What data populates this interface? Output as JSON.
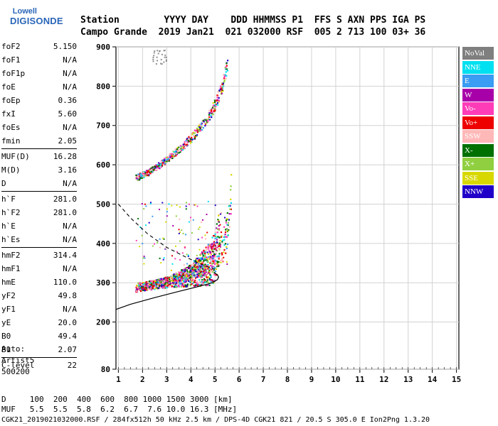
{
  "logo": {
    "line1": "Lowell",
    "line2": "DIGISONDE"
  },
  "header": {
    "labels": "Station        YYYY DAY    DDD HHMMSS P1  FFS S AXN PPS IGA PS",
    "values": "Campo Grande  2019 Jan21  021 032000 RSF  005 2 713 100 03+ 36"
  },
  "params": [
    {
      "key": "foF2",
      "value": "5.150"
    },
    {
      "key": "foF1",
      "value": "N/A"
    },
    {
      "key": "foF1p",
      "value": "N/A"
    },
    {
      "key": "foE",
      "value": "N/A"
    },
    {
      "key": "foEp",
      "value": "0.36"
    },
    {
      "key": "fxI",
      "value": "5.60"
    },
    {
      "key": "foEs",
      "value": "N/A"
    },
    {
      "key": "fmin",
      "value": "2.05"
    },
    {
      "key": "MUF(D)",
      "value": "16.28"
    },
    {
      "key": "M(D)",
      "value": "3.16"
    },
    {
      "key": "D",
      "value": "N/A"
    },
    {
      "key": "h`F",
      "value": "281.0"
    },
    {
      "key": "h`F2",
      "value": "281.0"
    },
    {
      "key": "h`E",
      "value": "N/A"
    },
    {
      "key": "h`Es",
      "value": "N/A"
    },
    {
      "key": "hmF2",
      "value": "314.4"
    },
    {
      "key": "hmF1",
      "value": "N/A"
    },
    {
      "key": "hmE",
      "value": "110.0"
    },
    {
      "key": "yF2",
      "value": "49.8"
    },
    {
      "key": "yF1",
      "value": "N/A"
    },
    {
      "key": "yE",
      "value": "20.0"
    },
    {
      "key": "B0",
      "value": "49.4"
    },
    {
      "key": "B1",
      "value": "2.07"
    },
    {
      "key": "C-level",
      "value": "22"
    }
  ],
  "auto": {
    "line1": "Auto:",
    "line2": "Artist5",
    "line3": "500200"
  },
  "bottom": {
    "d_line": "D     100  200  400  600  800 1000 1500 3000 [km]",
    "muf_line": "MUF   5.5  5.5  5.8  6.2  6.7  7.6 10.0 16.3 [MHz]"
  },
  "footer": "CGK21_2019021032000.RSF / 284fx512h 50 kHz 2.5 km / DPS-4D CGK21 821 / 20.5 S 305.0 E Ion2Png 1.3.20",
  "legend": [
    {
      "label": "NoVal",
      "color": "#7f7f7f"
    },
    {
      "label": "NNE",
      "color": "#00e0f0"
    },
    {
      "label": "E",
      "color": "#3a9cf2"
    },
    {
      "label": "W",
      "color": "#a800a8"
    },
    {
      "label": "Vo-",
      "color": "#ff3cb8"
    },
    {
      "label": "Vo+",
      "color": "#ee0000"
    },
    {
      "label": "SSW",
      "color": "#ffb8b8"
    },
    {
      "label": "X-",
      "color": "#007000"
    },
    {
      "label": "X+",
      "color": "#90d040"
    },
    {
      "label": "SSE",
      "color": "#d8d800"
    },
    {
      "label": "NNW",
      "color": "#2000c8"
    }
  ],
  "chart_data": {
    "type": "scatter",
    "xlabel": "",
    "ylabel": "",
    "x_unit": "MHz",
    "y_unit": "km",
    "xlim": [
      0.9,
      15.1
    ],
    "ylim": [
      80,
      900
    ],
    "x_ticks": [
      1,
      2,
      3,
      4,
      5,
      6,
      7,
      8,
      9,
      10,
      11,
      12,
      13,
      14,
      15
    ],
    "y_ticks": [
      80,
      200,
      300,
      400,
      500,
      600,
      700,
      800,
      900
    ],
    "grid": true,
    "legend_position": "right",
    "o_trace_1st_hop": [
      [
        1.7,
        285
      ],
      [
        2.0,
        288
      ],
      [
        2.5,
        292
      ],
      [
        3.0,
        297
      ],
      [
        3.5,
        303
      ],
      [
        4.0,
        310
      ],
      [
        4.5,
        320
      ],
      [
        4.8,
        330
      ],
      [
        5.0,
        345
      ],
      [
        5.1,
        370
      ],
      [
        5.15,
        410
      ],
      [
        5.2,
        450
      ]
    ],
    "x_trace_1st_hop": [
      [
        1.9,
        290
      ],
      [
        2.5,
        296
      ],
      [
        3.0,
        302
      ],
      [
        3.5,
        310
      ],
      [
        4.0,
        320
      ],
      [
        4.5,
        335
      ],
      [
        5.0,
        355
      ],
      [
        5.3,
        380
      ],
      [
        5.5,
        420
      ],
      [
        5.6,
        470
      ],
      [
        5.65,
        510
      ]
    ],
    "o_trace_2nd_hop": [
      [
        1.7,
        565
      ],
      [
        2.2,
        578
      ],
      [
        2.7,
        598
      ],
      [
        3.2,
        622
      ],
      [
        3.7,
        648
      ],
      [
        4.2,
        678
      ],
      [
        4.7,
        718
      ],
      [
        5.0,
        750
      ],
      [
        5.3,
        800
      ],
      [
        5.5,
        850
      ]
    ],
    "profile_solid": [
      [
        0.9,
        232
      ],
      [
        1.5,
        245
      ],
      [
        2.5,
        262
      ],
      [
        3.5,
        278
      ],
      [
        4.3,
        290
      ],
      [
        4.9,
        300
      ],
      [
        5.1,
        308
      ],
      [
        5.15,
        314
      ],
      [
        5.1,
        320
      ],
      [
        4.95,
        326
      ]
    ],
    "profile_dashed": [
      [
        1.0,
        500
      ],
      [
        1.5,
        465
      ],
      [
        2.2,
        425
      ],
      [
        3.0,
        390
      ],
      [
        3.8,
        365
      ],
      [
        4.4,
        348
      ],
      [
        4.8,
        338
      ],
      [
        5.0,
        334
      ]
    ]
  }
}
